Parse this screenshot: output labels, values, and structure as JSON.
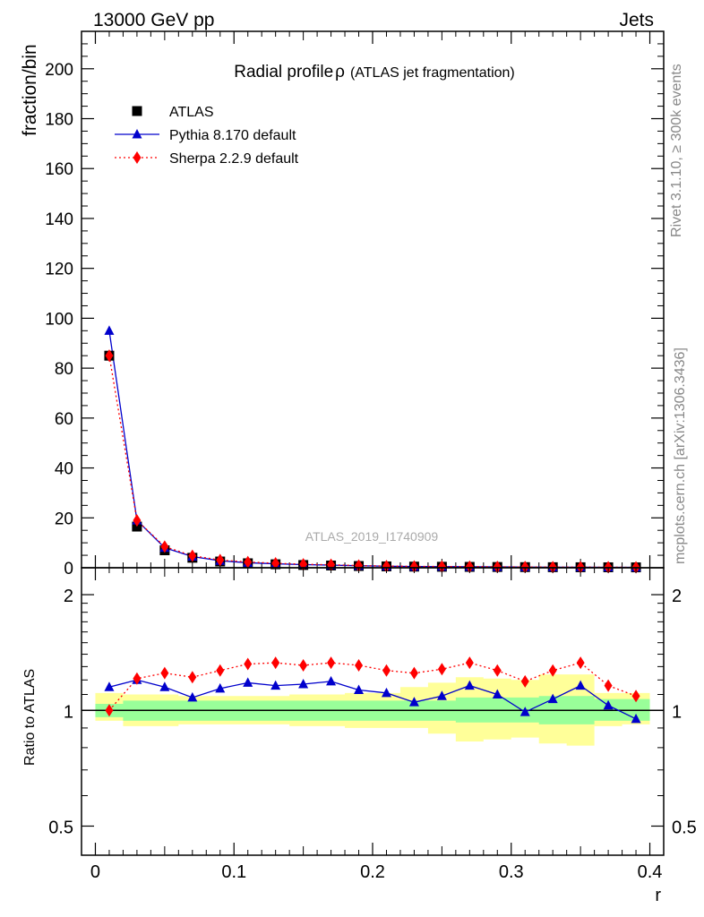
{
  "header": {
    "left": "13000 GeV pp",
    "right": "Jets"
  },
  "title": {
    "main": "Radial profile",
    "symbol": "ρ",
    "sub": "(ATLAS jet fragmentation)"
  },
  "side_labels": {
    "rivet": "Rivet 3.1.10, ≥ 300k events",
    "mcplots": "mcplots.cern.ch [arXiv:1306.3436]"
  },
  "watermark": "ATLAS_2019_I1740909",
  "colors": {
    "data": "#000000",
    "pythia": "#0000cc",
    "sherpa": "#ff0000",
    "band_inner": "#99ff99",
    "band_outer": "#ffff99"
  },
  "chart_data": [
    {
      "type": "scatter",
      "panel": "main",
      "ylabel": "fraction/bin",
      "xlim": [
        -0.01,
        0.41
      ],
      "ylim": [
        0,
        215
      ],
      "yticks": [
        0,
        20,
        40,
        60,
        80,
        100,
        120,
        140,
        160,
        180,
        200
      ],
      "x": [
        0.01,
        0.03,
        0.05,
        0.07,
        0.09,
        0.11,
        0.13,
        0.15,
        0.17,
        0.19,
        0.21,
        0.23,
        0.25,
        0.27,
        0.29,
        0.31,
        0.33,
        0.35,
        0.37,
        0.39
      ],
      "legend_position": "top-left",
      "series": [
        {
          "name": "ATLAS",
          "marker": "square",
          "values": [
            85,
            16.5,
            7,
            4,
            2.5,
            1.8,
            1.4,
            1.1,
            0.9,
            0.7,
            0.55,
            0.45,
            0.4,
            0.35,
            0.3,
            0.25,
            0.22,
            0.2,
            0.18,
            0.16
          ]
        },
        {
          "name": "Pythia 8.170 default",
          "marker": "triangle",
          "values": [
            95,
            19,
            8,
            4.5,
            2.8,
            2.0,
            1.6,
            1.25,
            1.05,
            0.8,
            0.62,
            0.47,
            0.44,
            0.4,
            0.33,
            0.25,
            0.23,
            0.23,
            0.19,
            0.15
          ]
        },
        {
          "name": "Sherpa 2.2.9 default",
          "marker": "diamond",
          "values": [
            85,
            19,
            8.5,
            4.8,
            3.1,
            2.3,
            1.8,
            1.4,
            1.2,
            0.9,
            0.68,
            0.56,
            0.5,
            0.46,
            0.38,
            0.3,
            0.28,
            0.27,
            0.21,
            0.18
          ]
        }
      ]
    },
    {
      "type": "scatter",
      "panel": "ratio",
      "ylabel": "Ratio to ATLAS",
      "xlabel": "r",
      "scale": "log",
      "ylim": [
        0.42,
        2.35
      ],
      "yticks": [
        0.5,
        1,
        2
      ],
      "xticks": [
        0,
        0.1,
        0.2,
        0.3,
        0.4
      ],
      "x": [
        0.01,
        0.03,
        0.05,
        0.07,
        0.09,
        0.11,
        0.13,
        0.15,
        0.17,
        0.19,
        0.21,
        0.23,
        0.25,
        0.27,
        0.29,
        0.31,
        0.33,
        0.35,
        0.37,
        0.39
      ],
      "bin_edges": [
        0,
        0.02,
        0.04,
        0.06,
        0.08,
        0.1,
        0.12,
        0.14,
        0.16,
        0.18,
        0.2,
        0.22,
        0.24,
        0.26,
        0.28,
        0.3,
        0.32,
        0.34,
        0.36,
        0.38,
        0.4
      ],
      "band_inner": {
        "low": [
          0.96,
          0.94,
          0.94,
          0.94,
          0.94,
          0.94,
          0.94,
          0.94,
          0.94,
          0.94,
          0.94,
          0.94,
          0.94,
          0.93,
          0.93,
          0.93,
          0.92,
          0.92,
          0.94,
          0.94
        ],
        "high": [
          1.04,
          1.06,
          1.06,
          1.06,
          1.06,
          1.06,
          1.06,
          1.06,
          1.06,
          1.06,
          1.06,
          1.06,
          1.06,
          1.08,
          1.08,
          1.08,
          1.09,
          1.09,
          1.07,
          1.07
        ]
      },
      "band_outer": {
        "low": [
          0.94,
          0.91,
          0.91,
          0.92,
          0.92,
          0.92,
          0.92,
          0.91,
          0.91,
          0.9,
          0.9,
          0.9,
          0.87,
          0.83,
          0.84,
          0.85,
          0.82,
          0.81,
          0.91,
          0.92
        ],
        "high": [
          1.11,
          1.1,
          1.1,
          1.09,
          1.09,
          1.09,
          1.09,
          1.1,
          1.1,
          1.11,
          1.11,
          1.15,
          1.18,
          1.22,
          1.21,
          1.2,
          1.24,
          1.24,
          1.11,
          1.11
        ]
      },
      "series": [
        {
          "name": "Pythia 8.170 default",
          "values": [
            1.15,
            1.2,
            1.15,
            1.08,
            1.14,
            1.18,
            1.16,
            1.17,
            1.19,
            1.13,
            1.11,
            1.05,
            1.09,
            1.16,
            1.1,
            0.99,
            1.07,
            1.16,
            1.03,
            0.95
          ]
        },
        {
          "name": "Sherpa 2.2.9 default",
          "values": [
            1.0,
            1.21,
            1.25,
            1.22,
            1.27,
            1.32,
            1.33,
            1.31,
            1.33,
            1.31,
            1.27,
            1.25,
            1.28,
            1.33,
            1.27,
            1.19,
            1.27,
            1.33,
            1.16,
            1.09
          ]
        }
      ]
    }
  ]
}
